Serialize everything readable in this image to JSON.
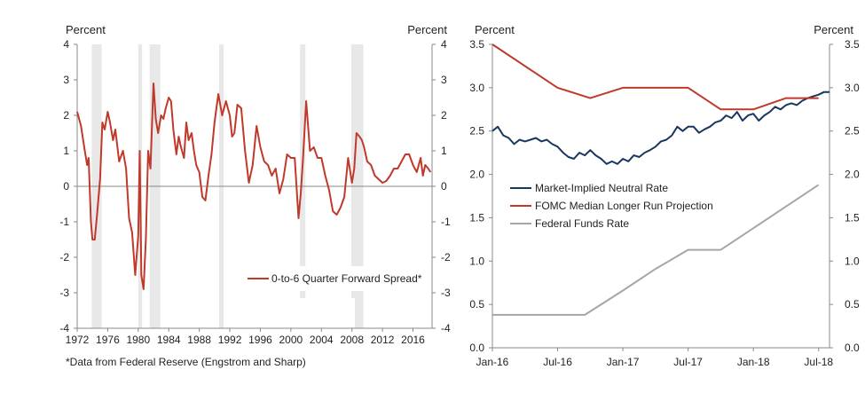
{
  "chart_data": [
    {
      "type": "line",
      "title": "",
      "ylabel_left": "Percent",
      "ylabel_right": "Percent",
      "xlim": [
        1972,
        2018.5
      ],
      "ylim": [
        -4,
        4
      ],
      "x_ticks": [
        1972,
        1976,
        1980,
        1984,
        1988,
        1992,
        1996,
        2000,
        2004,
        2008,
        2012,
        2016
      ],
      "x_tick_labels": [
        "1972",
        "1976",
        "1980",
        "1984",
        "1988",
        "1992",
        "1996",
        "2000",
        "2004",
        "2008",
        "2012",
        "2016"
      ],
      "y_ticks": [
        -4,
        -3,
        -2,
        -1,
        0,
        1,
        2,
        3,
        4
      ],
      "y_tick_labels": [
        "-4",
        "-3",
        "-2",
        "-1",
        "0",
        "1",
        "2",
        "3",
        "4"
      ],
      "recessions": [
        [
          1973.9,
          1975.2
        ],
        [
          1980.0,
          1980.5
        ],
        [
          1981.5,
          1982.9
        ],
        [
          1990.6,
          1991.2
        ],
        [
          2001.2,
          2001.9
        ],
        [
          2007.9,
          2009.5
        ]
      ],
      "footnote": "*Data from Federal Reserve (Engstrom and Sharp)",
      "series": [
        {
          "name": "0-to-6 Quarter Forward Spread*",
          "color": "#c0392b",
          "x": [
            1972.0,
            1972.5,
            1973.0,
            1973.3,
            1973.5,
            1973.8,
            1974.0,
            1974.3,
            1974.6,
            1975.0,
            1975.3,
            1975.6,
            1976.0,
            1976.3,
            1976.7,
            1977.0,
            1977.5,
            1978.0,
            1978.4,
            1978.8,
            1979.2,
            1979.6,
            1980.0,
            1980.2,
            1980.4,
            1980.7,
            1981.0,
            1981.3,
            1981.6,
            1982.0,
            1982.3,
            1982.6,
            1983.0,
            1983.3,
            1983.6,
            1984.0,
            1984.3,
            1984.6,
            1985.0,
            1985.3,
            1985.6,
            1986.0,
            1986.3,
            1986.6,
            1987.0,
            1987.3,
            1987.6,
            1988.0,
            1988.4,
            1988.8,
            1989.2,
            1989.6,
            1990.0,
            1990.5,
            1991.0,
            1991.5,
            1992.0,
            1992.3,
            1992.6,
            1993.0,
            1993.5,
            1994.0,
            1994.5,
            1995.0,
            1995.5,
            1996.0,
            1996.5,
            1997.0,
            1997.5,
            1998.0,
            1998.5,
            1999.0,
            1999.5,
            2000.0,
            2000.5,
            2001.0,
            2001.3,
            2001.6,
            2002.0,
            2002.5,
            2003.0,
            2003.5,
            2004.0,
            2004.5,
            2005.0,
            2005.5,
            2006.0,
            2006.5,
            2007.0,
            2007.5,
            2008.0,
            2008.3,
            2008.6,
            2009.0,
            2009.3,
            2009.6,
            2010.0,
            2010.5,
            2011.0,
            2011.5,
            2012.0,
            2012.5,
            2013.0,
            2013.5,
            2014.0,
            2014.5,
            2015.0,
            2015.5,
            2016.0,
            2016.5,
            2017.0,
            2017.3,
            2017.6,
            2018.0,
            2018.3
          ],
          "values": [
            2.1,
            1.7,
            1.0,
            0.6,
            0.8,
            -1.0,
            -1.5,
            -1.5,
            -0.8,
            0.2,
            1.8,
            1.6,
            2.1,
            1.8,
            1.3,
            1.6,
            0.7,
            1.0,
            0.5,
            -0.9,
            -1.3,
            -2.5,
            -1.4,
            1.0,
            -2.5,
            -2.9,
            -1.5,
            1.0,
            0.5,
            2.9,
            1.9,
            1.5,
            2.0,
            1.9,
            2.2,
            2.5,
            2.4,
            1.6,
            0.9,
            1.4,
            1.1,
            0.8,
            1.8,
            1.3,
            1.5,
            1.0,
            0.6,
            0.4,
            -0.3,
            -0.4,
            0.3,
            0.9,
            1.8,
            2.6,
            2.0,
            2.4,
            2.0,
            1.4,
            1.5,
            2.3,
            2.2,
            1.0,
            0.1,
            0.6,
            1.7,
            1.1,
            0.7,
            0.6,
            0.3,
            0.5,
            -0.2,
            0.2,
            0.9,
            0.8,
            0.8,
            -0.9,
            -0.2,
            0.8,
            2.4,
            1.0,
            1.1,
            0.8,
            0.8,
            0.3,
            -0.1,
            -0.7,
            -0.8,
            -0.6,
            -0.3,
            0.8,
            0.1,
            0.5,
            1.5,
            1.4,
            1.3,
            1.1,
            0.7,
            0.6,
            0.3,
            0.2,
            0.1,
            0.15,
            0.3,
            0.5,
            0.5,
            0.7,
            0.9,
            0.9,
            0.6,
            0.4,
            0.8,
            0.3,
            0.6,
            0.5,
            0.4
          ]
        }
      ],
      "legend": "lower-right"
    },
    {
      "type": "line",
      "title": "",
      "ylabel_left": "Percent",
      "ylabel_right": "Percent",
      "xlim": [
        0,
        31
      ],
      "ylim": [
        0,
        3.5
      ],
      "x_ticks": [
        0,
        6,
        12,
        18,
        24,
        30
      ],
      "x_tick_labels": [
        "Jan-16",
        "Jul-16",
        "Jan-17",
        "Jul-17",
        "Jan-18",
        "Jul-18"
      ],
      "y_ticks": [
        0,
        0.5,
        1.0,
        1.5,
        2.0,
        2.5,
        3.0,
        3.5
      ],
      "y_tick_labels": [
        "0.0",
        "0.5",
        "1.0",
        "1.5",
        "2.0",
        "2.5",
        "3.0",
        "3.5"
      ],
      "x_unit": "months since Jan-16",
      "series": [
        {
          "name": "Market-Implied Neutral Rate",
          "color": "#17375e",
          "x": [
            0,
            0.5,
            1,
            1.5,
            2,
            2.5,
            3,
            3.5,
            4,
            4.5,
            5,
            5.5,
            6,
            6.5,
            7,
            7.5,
            8,
            8.5,
            9,
            9.5,
            10,
            10.5,
            11,
            11.5,
            12,
            12.5,
            13,
            13.5,
            14,
            14.5,
            15,
            15.5,
            16,
            16.5,
            17,
            17.5,
            18,
            18.5,
            19,
            19.5,
            20,
            20.5,
            21,
            21.5,
            22,
            22.5,
            23,
            23.5,
            24,
            24.5,
            25,
            25.5,
            26,
            26.5,
            27,
            27.5,
            28,
            28.5,
            29,
            29.5,
            30,
            30.5,
            31
          ],
          "values": [
            2.5,
            2.55,
            2.45,
            2.42,
            2.35,
            2.4,
            2.38,
            2.4,
            2.42,
            2.38,
            2.4,
            2.35,
            2.32,
            2.25,
            2.2,
            2.18,
            2.25,
            2.22,
            2.28,
            2.22,
            2.18,
            2.12,
            2.15,
            2.12,
            2.18,
            2.15,
            2.22,
            2.2,
            2.25,
            2.28,
            2.32,
            2.38,
            2.4,
            2.45,
            2.55,
            2.5,
            2.55,
            2.55,
            2.48,
            2.52,
            2.55,
            2.6,
            2.62,
            2.68,
            2.65,
            2.72,
            2.62,
            2.68,
            2.7,
            2.62,
            2.68,
            2.72,
            2.78,
            2.75,
            2.8,
            2.82,
            2.8,
            2.85,
            2.88,
            2.9,
            2.92,
            2.95,
            2.95
          ]
        },
        {
          "name": "FOMC Median Longer Run Projection",
          "color": "#c0392b",
          "x": [
            0,
            6,
            9,
            12,
            18,
            21,
            24,
            27,
            30
          ],
          "values": [
            3.5,
            3.0,
            2.88,
            3.0,
            3.0,
            2.75,
            2.75,
            2.88,
            2.88
          ]
        },
        {
          "name": "Federal Funds Rate",
          "color": "#a6a6a6",
          "x": [
            0,
            8.5,
            12,
            15,
            18,
            21,
            24,
            27,
            30
          ],
          "values": [
            0.38,
            0.38,
            0.66,
            0.91,
            1.13,
            1.13,
            1.38,
            1.63,
            1.88
          ]
        }
      ],
      "legend": "left"
    }
  ]
}
